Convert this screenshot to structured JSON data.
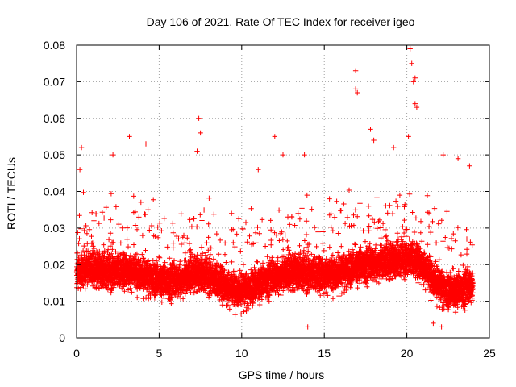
{
  "chart_data": {
    "type": "scatter",
    "title": "Day 106 of 2021, Rate Of TEC Index for receiver igeo",
    "xlabel": "GPS time / hours",
    "ylabel": "ROTI / TECUs",
    "xlim": [
      0,
      25
    ],
    "ylim": [
      0,
      0.08
    ],
    "xticks": [
      0,
      5,
      10,
      15,
      20,
      25
    ],
    "yticks": [
      0,
      0.01,
      0.02,
      0.03,
      0.04,
      0.05,
      0.06,
      0.07,
      0.08
    ],
    "xtick_labels": [
      "0",
      "5",
      "10",
      "15",
      "20",
      "25"
    ],
    "ytick_labels": [
      "0",
      "0.01",
      "0.02",
      "0.03",
      "0.04",
      "0.05",
      "0.06",
      "0.07",
      "0.08"
    ],
    "grid": true,
    "marker": "+",
    "color": "#ff0000",
    "x_coverage": [
      0,
      24
    ],
    "typical_range": [
      0.006,
      0.03
    ],
    "notable_points": [
      {
        "x": 0.3,
        "y": 0.052
      },
      {
        "x": 0.2,
        "y": 0.046
      },
      {
        "x": 2.2,
        "y": 0.05
      },
      {
        "x": 3.2,
        "y": 0.055
      },
      {
        "x": 4.2,
        "y": 0.053
      },
      {
        "x": 7.4,
        "y": 0.06
      },
      {
        "x": 7.5,
        "y": 0.056
      },
      {
        "x": 7.3,
        "y": 0.051
      },
      {
        "x": 11.0,
        "y": 0.046
      },
      {
        "x": 12.0,
        "y": 0.055
      },
      {
        "x": 12.5,
        "y": 0.05
      },
      {
        "x": 13.8,
        "y": 0.05
      },
      {
        "x": 16.9,
        "y": 0.073
      },
      {
        "x": 17.0,
        "y": 0.067
      },
      {
        "x": 16.9,
        "y": 0.068
      },
      {
        "x": 17.8,
        "y": 0.057
      },
      {
        "x": 18.0,
        "y": 0.054
      },
      {
        "x": 19.2,
        "y": 0.052
      },
      {
        "x": 20.2,
        "y": 0.079
      },
      {
        "x": 20.3,
        "y": 0.075
      },
      {
        "x": 20.5,
        "y": 0.071
      },
      {
        "x": 20.4,
        "y": 0.07
      },
      {
        "x": 20.5,
        "y": 0.064
      },
      {
        "x": 20.6,
        "y": 0.063
      },
      {
        "x": 20.1,
        "y": 0.055
      },
      {
        "x": 22.2,
        "y": 0.05
      },
      {
        "x": 23.1,
        "y": 0.049
      },
      {
        "x": 23.8,
        "y": 0.047
      },
      {
        "x": 14.0,
        "y": 0.003
      },
      {
        "x": 22.1,
        "y": 0.003
      },
      {
        "x": 21.6,
        "y": 0.004
      }
    ]
  }
}
